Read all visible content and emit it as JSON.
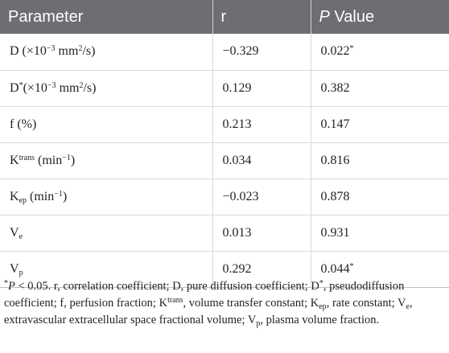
{
  "table": {
    "headers": [
      {
        "pre": "",
        "italic": "",
        "post": "Parameter"
      },
      {
        "pre": "",
        "italic": "",
        "post": "r"
      },
      {
        "pre": "",
        "italic": "P",
        "post": " Value"
      }
    ],
    "rows": [
      {
        "param": {
          "base": "D (×10",
          "sup": "−3",
          "mid": " mm",
          "sup2": "2",
          "tail": "/s)"
        },
        "r": "−0.329",
        "p": "0.022",
        "p_mark": "*"
      },
      {
        "param": {
          "base": "D",
          "sup": "*",
          "mid": "(×10",
          "sup2": "−3",
          "tail": " mm",
          "sup3": "2",
          "tail2": "/s)"
        },
        "r": "0.129",
        "p": "0.382",
        "p_mark": ""
      },
      {
        "param": {
          "base": "f (%)"
        },
        "r": "0.213",
        "p": "0.147",
        "p_mark": ""
      },
      {
        "param": {
          "base": "K",
          "sup": "trans",
          "mid": " (min",
          "sup2": "−1",
          "tail": ")"
        },
        "r": "0.034",
        "p": "0.816",
        "p_mark": ""
      },
      {
        "param": {
          "base": "K",
          "sub": "ep",
          "mid": " (min",
          "sup2": "−1",
          "tail": ")"
        },
        "r": "−0.023",
        "p": "0.878",
        "p_mark": ""
      },
      {
        "param": {
          "base": "V",
          "sub": "e"
        },
        "r": "0.013",
        "p": "0.931",
        "p_mark": ""
      },
      {
        "param": {
          "base": "V",
          "sub": "p"
        },
        "r": "0.292",
        "p": "0.044",
        "p_mark": "*"
      }
    ]
  },
  "footnote": {
    "mark": "*",
    "p_italic": "P",
    "line_a": " < 0.05. r, correlation coefficient; D, pure diffusion coefficient; D",
    "d_star": "*",
    "line_b": ", pseudodiffusion coefficient; f, perfusion fraction; K",
    "ktrans": "trans",
    "line_c": ", volume transfer constant; K",
    "kep": "ep",
    "line_d": ", rate constant; V",
    "ve": "e",
    "line_e": ", extravascular extracellular space fractional volume; V",
    "vp": "p",
    "line_f": ", plasma volume fraction."
  }
}
